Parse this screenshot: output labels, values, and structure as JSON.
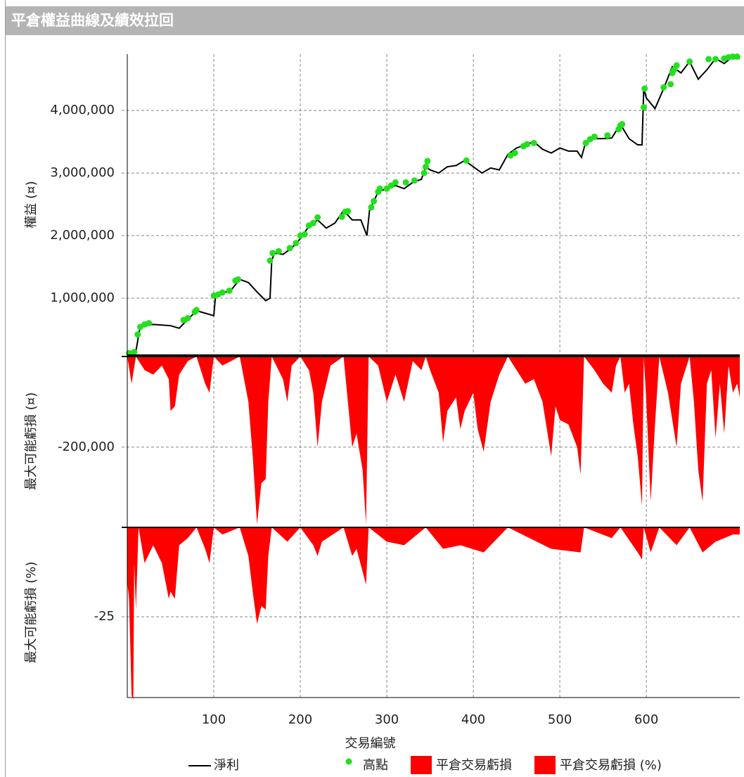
{
  "window": {
    "title": "平倉權益曲線及績效拉回"
  },
  "chart_data": [
    {
      "type": "line",
      "ylabel": "權益 (¤)",
      "xlim": [
        0,
        708
      ],
      "xticks": [
        100,
        200,
        300,
        400,
        500,
        600
      ],
      "ylim": [
        90000,
        4900000
      ],
      "yticks": [
        {
          "value": 1000000,
          "label": "1,000,000"
        },
        {
          "value": 2000000,
          "label": "2,000,000"
        },
        {
          "value": 3000000,
          "label": "3,000,000"
        },
        {
          "value": 4000000,
          "label": "4,000,000"
        }
      ],
      "grid": true,
      "series": [
        {
          "name": "淨利",
          "type": "line",
          "color": "#000000",
          "x": [
            0,
            10,
            13,
            15,
            20,
            30,
            40,
            50,
            60,
            70,
            80,
            90,
            100,
            102,
            110,
            120,
            130,
            140,
            150,
            160,
            165,
            167,
            170,
            180,
            190,
            200,
            210,
            220,
            230,
            240,
            250,
            260,
            270,
            277,
            280,
            290,
            300,
            310,
            320,
            330,
            340,
            345,
            350,
            360,
            370,
            380,
            390,
            400,
            410,
            420,
            430,
            440,
            450,
            460,
            470,
            480,
            490,
            500,
            510,
            520,
            525,
            530,
            540,
            550,
            560,
            570,
            580,
            590,
            595,
            597,
            600,
            610,
            620,
            630,
            640,
            650,
            660,
            670,
            680,
            690,
            700,
            708
          ],
          "values": [
            100000,
            150000,
            400000,
            550000,
            560000,
            580000,
            570000,
            560000,
            520000,
            660000,
            800000,
            760000,
            720000,
            1040000,
            1080000,
            1130000,
            1300000,
            1250000,
            1100000,
            960000,
            1000000,
            1600000,
            1720000,
            1700000,
            1800000,
            1950000,
            2150000,
            2250000,
            2120000,
            2200000,
            2400000,
            2250000,
            2250000,
            2000000,
            2400000,
            2700000,
            2750000,
            2800000,
            2750000,
            2850000,
            2900000,
            3100000,
            3050000,
            3000000,
            3100000,
            3120000,
            3200000,
            3100000,
            3000000,
            3080000,
            3050000,
            3300000,
            3400000,
            3450000,
            3500000,
            3380000,
            3320000,
            3400000,
            3350000,
            3350000,
            3250000,
            3500000,
            3550000,
            3550000,
            3560000,
            3780000,
            3550000,
            3450000,
            3450000,
            4350000,
            4200000,
            4030000,
            4350000,
            4700000,
            4600000,
            4780000,
            4500000,
            4650000,
            4830000,
            4750000,
            4860000,
            4830000
          ]
        },
        {
          "name": "高點",
          "type": "scatter",
          "color": "#22e01e",
          "x": [
            2,
            8,
            12,
            15,
            20,
            25,
            65,
            70,
            78,
            80,
            100,
            105,
            110,
            118,
            125,
            128,
            165,
            168,
            175,
            188,
            195,
            200,
            205,
            210,
            215,
            220,
            248,
            252,
            255,
            282,
            285,
            290,
            292,
            300,
            305,
            310,
            322,
            332,
            343,
            345,
            347,
            392,
            443,
            448,
            458,
            462,
            470,
            530,
            535,
            540,
            555,
            568,
            570,
            572,
            597,
            598,
            620,
            628,
            630,
            632,
            635,
            650,
            672,
            680,
            690,
            695,
            700,
            705
          ],
          "values": [
            120000,
            140000,
            420000,
            540000,
            580000,
            600000,
            650000,
            680000,
            780000,
            810000,
            1040000,
            1060000,
            1090000,
            1120000,
            1280000,
            1300000,
            1600000,
            1720000,
            1750000,
            1800000,
            1880000,
            2000000,
            2020000,
            2160000,
            2200000,
            2290000,
            2300000,
            2380000,
            2390000,
            2450000,
            2550000,
            2700000,
            2750000,
            2750000,
            2800000,
            2850000,
            2850000,
            2880000,
            3000000,
            3100000,
            3190000,
            3200000,
            3280000,
            3320000,
            3430000,
            3460000,
            3480000,
            3480000,
            3540000,
            3580000,
            3600000,
            3700000,
            3760000,
            3780000,
            4050000,
            4350000,
            4370000,
            4420000,
            4600000,
            4650000,
            4720000,
            4780000,
            4820000,
            4820000,
            4830000,
            4850000,
            4860000,
            4860000
          ]
        }
      ]
    },
    {
      "type": "area",
      "ylabel": "最大可能虧損 (¤)",
      "xlim": [
        0,
        708
      ],
      "xticks": [
        100,
        200,
        300,
        400,
        500,
        600
      ],
      "ylim": [
        -374000,
        0
      ],
      "yticks": [
        {
          "value": -200000,
          "label": "-200,000"
        }
      ],
      "grid": true,
      "series": [
        {
          "name": "平倉交易虧損",
          "type": "area",
          "color": "#ff0000",
          "x": [
            0,
            5,
            10,
            20,
            30,
            40,
            48,
            50,
            55,
            60,
            70,
            80,
            90,
            95,
            100,
            110,
            120,
            130,
            140,
            145,
            150,
            155,
            160,
            163,
            167,
            180,
            185,
            190,
            200,
            210,
            215,
            220,
            225,
            230,
            235,
            250,
            255,
            260,
            265,
            272,
            276,
            279,
            290,
            300,
            305,
            310,
            320,
            330,
            340,
            345,
            350,
            360,
            365,
            370,
            380,
            385,
            390,
            400,
            405,
            412,
            420,
            430,
            440,
            450,
            460,
            470,
            480,
            490,
            495,
            500,
            510,
            520,
            524,
            528,
            540,
            550,
            560,
            565,
            570,
            575,
            580,
            585,
            590,
            595,
            597,
            600,
            605,
            610,
            615,
            625,
            635,
            640,
            650,
            655,
            660,
            665,
            670,
            675,
            680,
            685,
            690,
            695,
            700,
            705,
            708
          ],
          "values": [
            0,
            -60000,
            0,
            -30000,
            -40000,
            -20000,
            -50000,
            -120000,
            -110000,
            -40000,
            -10000,
            0,
            -60000,
            -80000,
            0,
            -20000,
            -10000,
            0,
            -100000,
            -220000,
            -370000,
            -280000,
            -270000,
            -100000,
            0,
            -50000,
            -100000,
            -20000,
            0,
            -30000,
            -80000,
            -200000,
            -100000,
            -60000,
            -20000,
            0,
            -100000,
            -200000,
            -170000,
            -250000,
            -370000,
            0,
            -20000,
            -100000,
            -70000,
            -40000,
            -100000,
            -10000,
            -30000,
            0,
            -30000,
            -80000,
            -190000,
            -120000,
            -90000,
            -160000,
            -120000,
            -80000,
            -160000,
            -210000,
            -100000,
            -40000,
            0,
            -30000,
            -60000,
            -50000,
            -100000,
            -220000,
            -110000,
            -140000,
            -150000,
            -200000,
            -260000,
            0,
            -30000,
            -60000,
            -80000,
            -20000,
            0,
            -80000,
            -60000,
            -150000,
            -220000,
            -330000,
            0,
            -100000,
            -320000,
            -150000,
            0,
            -80000,
            -200000,
            -60000,
            0,
            -100000,
            -250000,
            -320000,
            -60000,
            -30000,
            -180000,
            -60000,
            -170000,
            -20000,
            -80000,
            -60000,
            -90000
          ]
        }
      ]
    },
    {
      "type": "area",
      "ylabel": "最大可能虧損 (%)",
      "xlabel": "交易編號",
      "xlim": [
        0,
        708
      ],
      "xticks": [
        100,
        200,
        300,
        400,
        500,
        600
      ],
      "ylim": [
        -47.6,
        0
      ],
      "yticks": [
        -25
      ],
      "grid": true,
      "series": [
        {
          "name": "平倉交易虧損 (%)",
          "type": "area",
          "color": "#ff0000",
          "x": [
            0,
            2,
            5,
            7,
            8,
            10,
            13,
            20,
            30,
            40,
            48,
            50,
            55,
            60,
            70,
            80,
            90,
            95,
            100,
            110,
            130,
            140,
            145,
            150,
            155,
            160,
            163,
            167,
            185,
            200,
            215,
            220,
            225,
            250,
            260,
            265,
            276,
            279,
            300,
            320,
            345,
            365,
            385,
            412,
            440,
            490,
            524,
            528,
            560,
            570,
            590,
            595,
            597,
            605,
            615,
            635,
            650,
            665,
            680,
            690,
            700,
            708
          ],
          "values": [
            -15,
            -20,
            -47,
            -48,
            -10,
            -23,
            0,
            -10,
            -5,
            -10,
            -20,
            -18,
            -20,
            -5,
            -3,
            0,
            -6,
            -10,
            0,
            -2,
            0,
            -8,
            -18,
            -27,
            -22,
            -23,
            -8,
            0,
            -4,
            0,
            -5,
            -8,
            -4,
            0,
            -8,
            -6,
            -16,
            0,
            -4,
            -5,
            0,
            -6,
            -5,
            -7,
            0,
            -6,
            -7,
            0,
            -3,
            0,
            -7,
            -9,
            0,
            -7,
            0,
            -5,
            0,
            -7,
            -4,
            -3,
            -2,
            -2
          ]
        }
      ]
    }
  ]
}
